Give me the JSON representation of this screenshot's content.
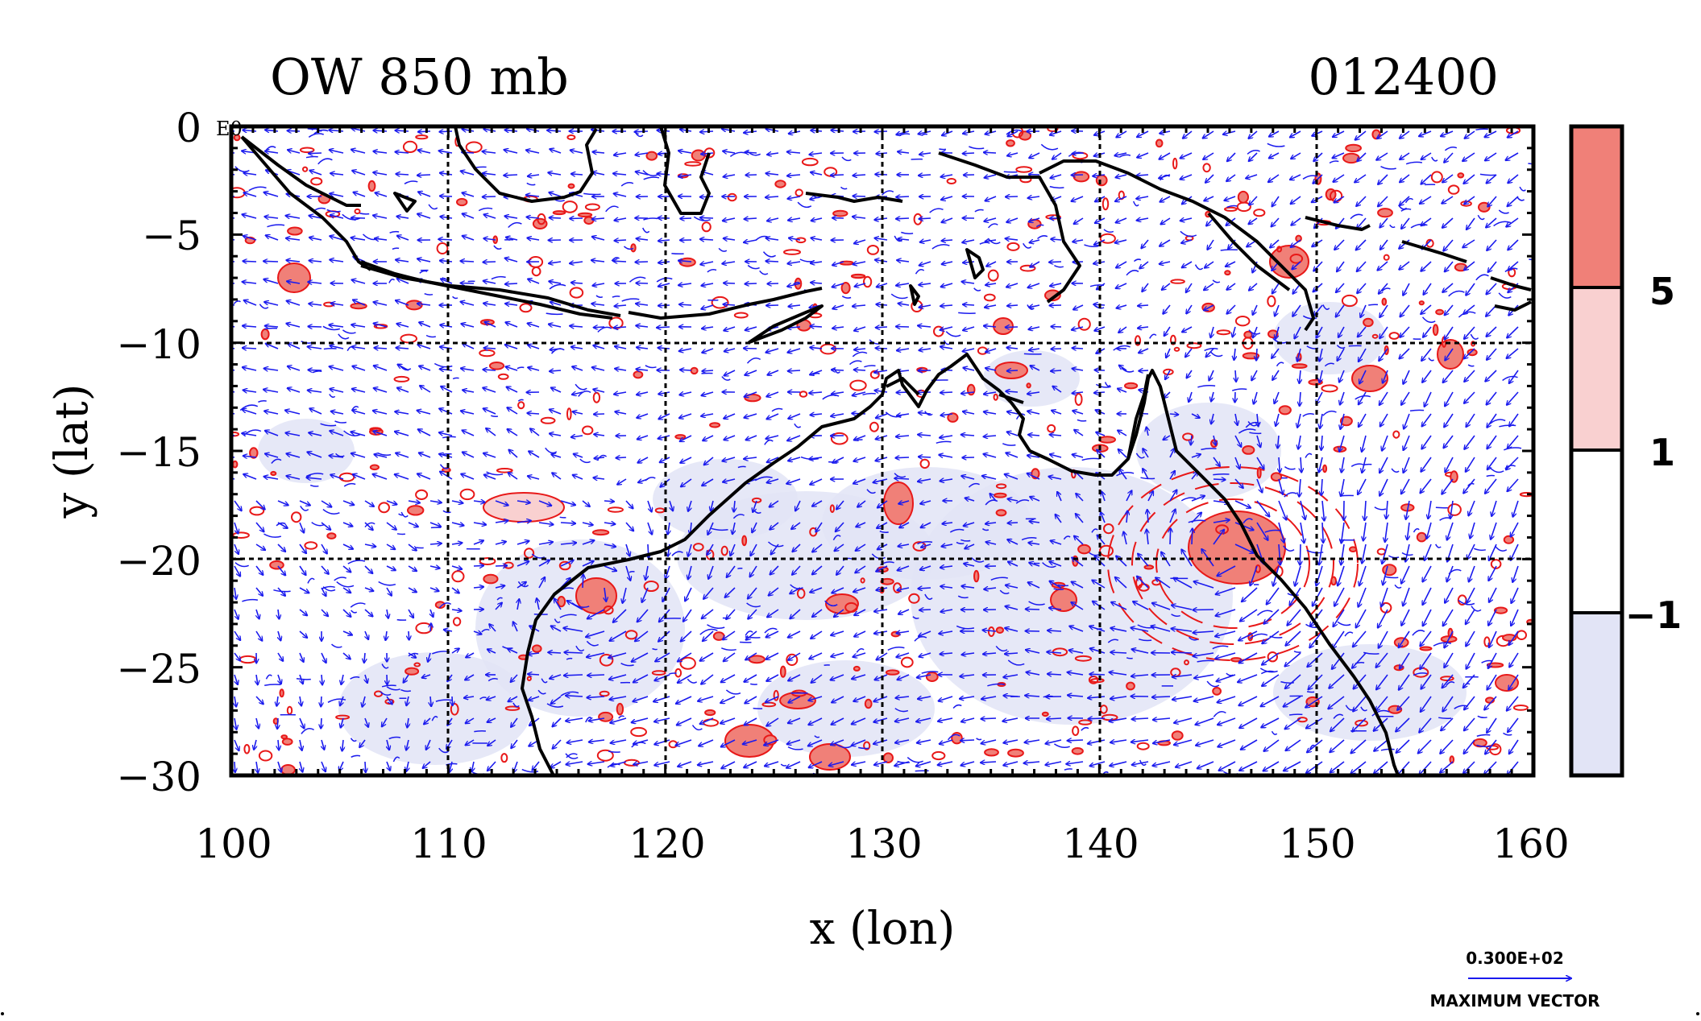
{
  "header": {
    "title": "OW 850 mb",
    "timestamp": "012400"
  },
  "axes": {
    "xlabel": "x (lon)",
    "ylabel": "y (lat)",
    "x_ticks": [
      "100",
      "110",
      "120",
      "130",
      "140",
      "150",
      "160"
    ],
    "y_ticks": [
      "0",
      "−5",
      "−10",
      "−15",
      "−20",
      "−25",
      "−30"
    ],
    "x_range": [
      100,
      160
    ],
    "y_range": [
      -30,
      0
    ],
    "corner_label": "E0"
  },
  "colorbar": {
    "labels": [
      "5",
      "1",
      "−1"
    ],
    "colors": [
      "#f08078",
      "#f9d0d0",
      "#ffffff",
      "#e2e4f6"
    ]
  },
  "vector_key": {
    "value": "0.300E+02",
    "caption": "MAXIMUM VECTOR",
    "color": "#1a1aee"
  },
  "colors": {
    "vector": "#1a1aee",
    "positive_contour": "#e81818",
    "negative_fill": "#e2e4f6",
    "coast": "#000000"
  },
  "chart_data": {
    "type": "map",
    "variable": "OW 850 mb",
    "grid": true,
    "grid_lon": [
      110,
      120,
      130,
      140,
      150
    ],
    "grid_lat": [
      -10,
      -20
    ],
    "contour_levels": [
      -1,
      1,
      5
    ]
  }
}
